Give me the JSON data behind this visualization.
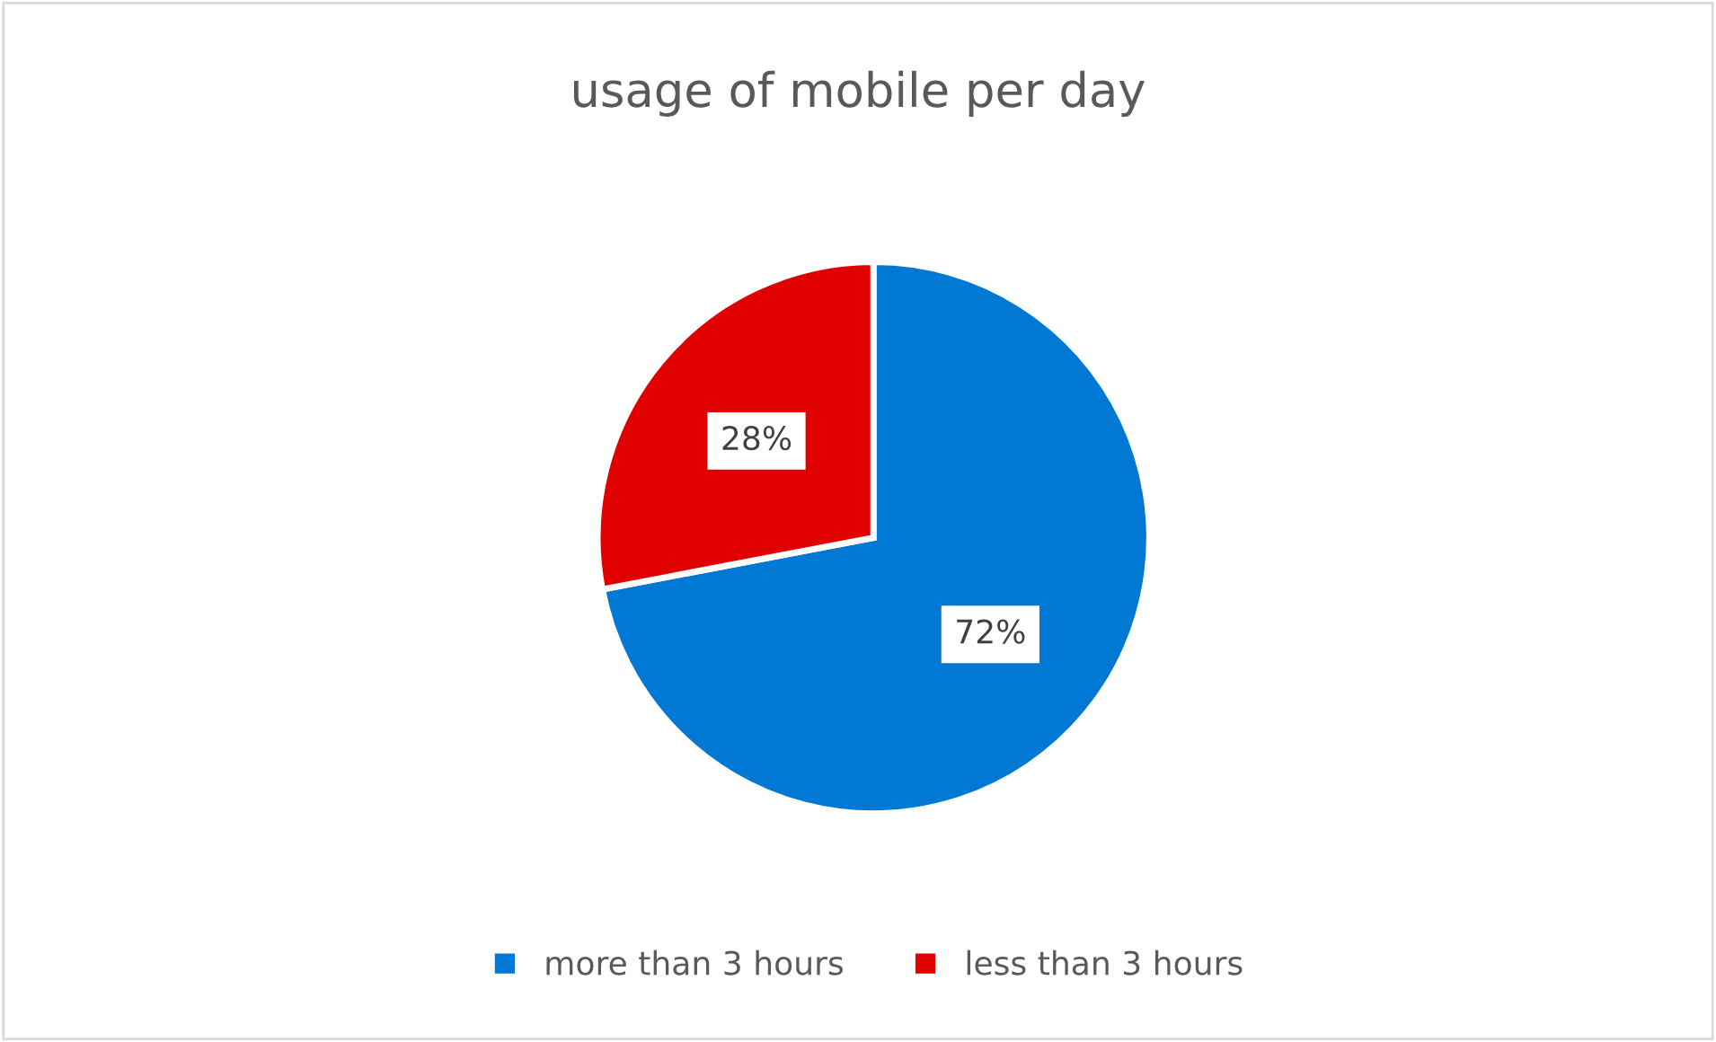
{
  "chart_data": {
    "type": "pie",
    "title": "usage of mobile per day",
    "categories": [
      "more than 3 hours",
      "less than 3 hours"
    ],
    "values": [
      72,
      28
    ],
    "colors": [
      "#0078d4",
      "#e00000"
    ],
    "value_labels": [
      "72%",
      "28%"
    ],
    "legend": "bottom"
  }
}
